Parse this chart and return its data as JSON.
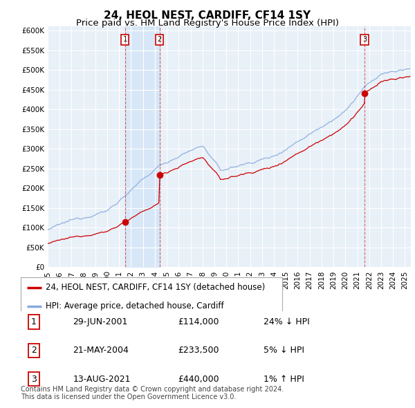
{
  "title": "24, HEOL NEST, CARDIFF, CF14 1SY",
  "subtitle": "Price paid vs. HM Land Registry's House Price Index (HPI)",
  "ylabel_ticks": [
    "£0",
    "£50K",
    "£100K",
    "£150K",
    "£200K",
    "£250K",
    "£300K",
    "£350K",
    "£400K",
    "£450K",
    "£500K",
    "£550K",
    "£600K"
  ],
  "ytick_values": [
    0,
    50000,
    100000,
    150000,
    200000,
    250000,
    300000,
    350000,
    400000,
    450000,
    500000,
    550000,
    600000
  ],
  "ylim": [
    0,
    610000
  ],
  "xlim_start": 1995.0,
  "xlim_end": 2025.5,
  "sale_dates": [
    2001.49,
    2004.39,
    2021.62
  ],
  "sale_prices": [
    114000,
    233500,
    440000
  ],
  "sale_labels": [
    "1",
    "2",
    "3"
  ],
  "vline_color": "#cc0000",
  "shade_color": "#d0e4f7",
  "sale_marker_color": "#cc0000",
  "hpi_color": "#88aadd",
  "price_line_color": "#cc0000",
  "background_color": "#ffffff",
  "plot_bg_color": "#e8f0f8",
  "grid_color": "#ffffff",
  "legend_entries": [
    "24, HEOL NEST, CARDIFF, CF14 1SY (detached house)",
    "HPI: Average price, detached house, Cardiff"
  ],
  "table_data": [
    [
      "1",
      "29-JUN-2001",
      "£114,000",
      "24% ↓ HPI"
    ],
    [
      "2",
      "21-MAY-2004",
      "£233,500",
      "5% ↓ HPI"
    ],
    [
      "3",
      "13-AUG-2021",
      "£440,000",
      "1% ↑ HPI"
    ]
  ],
  "footer_text": "Contains HM Land Registry data © Crown copyright and database right 2024.\nThis data is licensed under the Open Government Licence v3.0.",
  "title_fontsize": 11,
  "subtitle_fontsize": 9.5,
  "tick_fontsize": 7.5,
  "legend_fontsize": 8.5,
  "table_fontsize": 9,
  "footer_fontsize": 7
}
